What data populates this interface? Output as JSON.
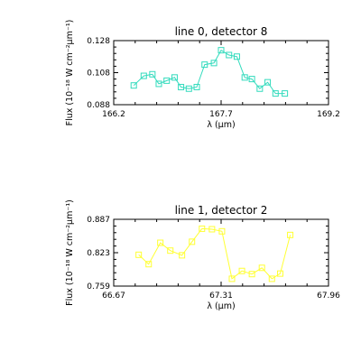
{
  "chart_data": [
    {
      "type": "line",
      "title": "line 0, detector 8",
      "xlabel": "λ (μm)",
      "ylabel": "Flux (10⁻¹⁸ W cm⁻²μm⁻¹)",
      "xlim": [
        166.2,
        169.2
      ],
      "ylim": [
        0.088,
        0.128
      ],
      "xticks": [
        "166.2",
        "167.7",
        "169.2"
      ],
      "yticks": [
        "0.088",
        "0.108",
        "0.128"
      ],
      "color": "#33dbbd",
      "marker": "square",
      "series": [
        {
          "x": [
            166.48,
            166.62,
            166.74,
            166.83,
            166.94,
            167.05,
            167.14,
            167.25,
            167.36,
            167.47,
            167.6,
            167.7,
            167.81,
            167.92,
            168.03,
            168.13,
            168.24,
            168.35,
            168.46,
            168.59
          ],
          "values": [
            0.1,
            0.106,
            0.107,
            0.101,
            0.103,
            0.105,
            0.099,
            0.098,
            0.099,
            0.113,
            0.114,
            0.122,
            0.119,
            0.118,
            0.105,
            0.104,
            0.098,
            0.102,
            0.095,
            0.095
          ]
        }
      ]
    },
    {
      "type": "line",
      "title": "line 1, detector 2",
      "xlabel": "λ (μm)",
      "ylabel": "Flux (10⁻¹⁸ W cm⁻²μm⁻¹)",
      "xlim": [
        66.67,
        67.96
      ],
      "ylim": [
        0.759,
        0.887
      ],
      "xticks": [
        "66.67",
        "67.31",
        "67.96"
      ],
      "yticks": [
        "0.759",
        "0.823",
        "0.887"
      ],
      "color": "#ffff33",
      "marker": "square",
      "series": [
        {
          "x": [
            66.82,
            66.88,
            66.95,
            67.01,
            67.08,
            67.14,
            67.2,
            67.26,
            67.32,
            67.38,
            67.44,
            67.5,
            67.56,
            67.62,
            67.67,
            67.73
          ],
          "values": [
            0.819,
            0.801,
            0.842,
            0.827,
            0.818,
            0.844,
            0.869,
            0.868,
            0.864,
            0.773,
            0.788,
            0.782,
            0.794,
            0.773,
            0.783,
            0.857
          ]
        }
      ]
    }
  ]
}
